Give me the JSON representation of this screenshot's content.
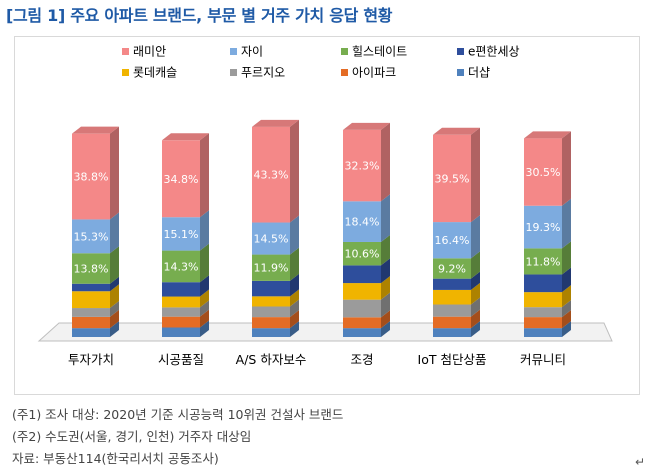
{
  "figure": {
    "title": "[그림 1] 주요 아파트 브랜드, 부문 별 거주 가치 응답 현황",
    "notes": [
      "(주1) 조사 대상: 2020년 기준 시공능력 10위권 건설사 브랜드",
      "(주2) 수도권(서울, 경기, 인천) 거주자 대상임",
      "자료: 부동산114(한국리서치 공동조사)"
    ],
    "return_mark": "↵"
  },
  "chart_data": {
    "type": "bar",
    "stacked": true,
    "three_d": true,
    "categories": [
      "투자가치",
      "시공품질",
      "A/S 하자보수",
      "조경",
      "IoT 첨단상품",
      "커뮤니티"
    ],
    "series": [
      {
        "name": "더샵",
        "color": "#4f81bd",
        "values": [
          4.0,
          4.3,
          4.0,
          4.0,
          4.0,
          4.0
        ]
      },
      {
        "name": "아이파크",
        "color": "#e46c25",
        "values": [
          5.1,
          4.9,
          5.0,
          4.9,
          5.2,
          5.0
        ]
      },
      {
        "name": "푸르지오",
        "color": "#9b9b9b",
        "values": [
          4.0,
          4.2,
          4.8,
          8.0,
          5.5,
          4.5
        ]
      },
      {
        "name": "롯데캐슬",
        "color": "#f0b400",
        "values": [
          7.6,
          4.9,
          4.6,
          7.5,
          6.6,
          6.8
        ]
      },
      {
        "name": "e편한세상",
        "color": "#2e4e9c",
        "values": [
          3.4,
          6.5,
          7.0,
          8.0,
          5.1,
          8.0
        ]
      },
      {
        "name": "힐스테이트",
        "color": "#77ad4f",
        "values": [
          13.8,
          14.3,
          11.9,
          10.6,
          9.2,
          11.8
        ]
      },
      {
        "name": "자이",
        "color": "#7dabdf",
        "values": [
          15.3,
          15.1,
          14.5,
          18.4,
          16.4,
          19.3
        ]
      },
      {
        "name": "래미안",
        "color": "#f48888",
        "values": [
          38.8,
          34.8,
          43.3,
          32.3,
          39.5,
          30.5
        ]
      }
    ],
    "data_labels": {
      "래미안": [
        "38.8%",
        "34.8%",
        "43.3%",
        "32.3%",
        "39.5%",
        "30.5%"
      ],
      "자이": [
        "15.3%",
        "15.1%",
        "14.5%",
        "18.4%",
        "16.4%",
        "19.3%"
      ],
      "힐스테이트": [
        "13.8%",
        "14.3%",
        "11.9%",
        "10.6%",
        "9.2%",
        "11.8%"
      ]
    },
    "legend_order": [
      "래미안",
      "자이",
      "힐스테이트",
      "e편한세상",
      "롯데캐슬",
      "푸르지오",
      "아이파크",
      "더샵"
    ],
    "legend_position": "top",
    "ylim": [
      0,
      100
    ],
    "grid": false,
    "axes_visible": false
  }
}
